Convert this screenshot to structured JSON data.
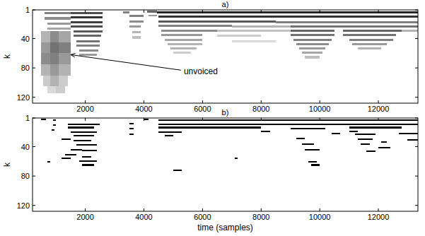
{
  "chart_data": [
    {
      "type": "heatmap",
      "title": "a)",
      "ylabel": "k",
      "color": "#000000",
      "xlim": [
        200,
        13350
      ],
      "ylim": [
        1,
        128
      ],
      "zlim": [
        0,
        1
      ],
      "xticks": [
        2000,
        4000,
        6000,
        8000,
        10000,
        12000
      ],
      "yticks": [
        1,
        40,
        80,
        120
      ],
      "annotations": [
        {
          "text": "unvoiced",
          "x": 1500,
          "y": 62
        }
      ],
      "cells": [
        {
          "x0": 1500,
          "x1": 2600,
          "y0": 4,
          "y1": 7,
          "value": 0.7
        },
        {
          "x0": 1500,
          "x1": 2600,
          "y0": 10,
          "y1": 13,
          "value": 0.8
        },
        {
          "x0": 1500,
          "x1": 2600,
          "y0": 16,
          "y1": 19,
          "value": 0.75
        },
        {
          "x0": 1500,
          "x1": 2600,
          "y0": 22,
          "y1": 25,
          "value": 0.7
        },
        {
          "x0": 1600,
          "x1": 2600,
          "y0": 29,
          "y1": 32,
          "value": 0.65
        },
        {
          "x0": 1600,
          "x1": 2550,
          "y0": 35,
          "y1": 38,
          "value": 0.6
        },
        {
          "x0": 1700,
          "x1": 2500,
          "y0": 42,
          "y1": 45,
          "value": 0.55
        },
        {
          "x0": 1700,
          "x1": 2500,
          "y0": 48,
          "y1": 51,
          "value": 0.5
        },
        {
          "x0": 1800,
          "x1": 2450,
          "y0": 55,
          "y1": 58,
          "value": 0.45
        },
        {
          "x0": 1800,
          "x1": 2400,
          "y0": 61,
          "y1": 64,
          "value": 0.4
        },
        {
          "x0": 600,
          "x1": 1500,
          "y0": 4,
          "y1": 7,
          "value": 0.5
        },
        {
          "x0": 600,
          "x1": 1500,
          "y0": 11,
          "y1": 14,
          "value": 0.45
        },
        {
          "x0": 700,
          "x1": 1500,
          "y0": 18,
          "y1": 21,
          "value": 0.4
        },
        {
          "x0": 700,
          "x1": 1500,
          "y0": 25,
          "y1": 28,
          "value": 0.35
        },
        {
          "x0": 500,
          "x1": 800,
          "y0": 30,
          "y1": 45,
          "value": 0.3
        },
        {
          "x0": 800,
          "x1": 1100,
          "y0": 30,
          "y1": 45,
          "value": 0.45
        },
        {
          "x0": 1100,
          "x1": 1500,
          "y0": 30,
          "y1": 45,
          "value": 0.35
        },
        {
          "x0": 500,
          "x1": 800,
          "y0": 45,
          "y1": 60,
          "value": 0.4
        },
        {
          "x0": 800,
          "x1": 1100,
          "y0": 45,
          "y1": 60,
          "value": 0.55
        },
        {
          "x0": 1100,
          "x1": 1500,
          "y0": 45,
          "y1": 60,
          "value": 0.5
        },
        {
          "x0": 500,
          "x1": 800,
          "y0": 60,
          "y1": 75,
          "value": 0.45
        },
        {
          "x0": 800,
          "x1": 1100,
          "y0": 60,
          "y1": 75,
          "value": 0.5
        },
        {
          "x0": 1100,
          "x1": 1500,
          "y0": 60,
          "y1": 75,
          "value": 0.4
        },
        {
          "x0": 500,
          "x1": 800,
          "y0": 75,
          "y1": 90,
          "value": 0.3
        },
        {
          "x0": 800,
          "x1": 1100,
          "y0": 75,
          "y1": 90,
          "value": 0.4
        },
        {
          "x0": 1100,
          "x1": 1500,
          "y0": 75,
          "y1": 90,
          "value": 0.3
        },
        {
          "x0": 550,
          "x1": 800,
          "y0": 90,
          "y1": 105,
          "value": 0.2
        },
        {
          "x0": 800,
          "x1": 1100,
          "y0": 90,
          "y1": 105,
          "value": 0.3
        },
        {
          "x0": 1100,
          "x1": 1400,
          "y0": 90,
          "y1": 105,
          "value": 0.2
        },
        {
          "x0": 700,
          "x1": 1000,
          "y0": 105,
          "y1": 115,
          "value": 0.15
        },
        {
          "x0": 1000,
          "x1": 1300,
          "y0": 105,
          "y1": 115,
          "value": 0.2
        },
        {
          "x0": 3300,
          "x1": 3500,
          "y0": 3,
          "y1": 6,
          "value": 0.5
        },
        {
          "x0": 3500,
          "x1": 4000,
          "y0": 8,
          "y1": 11,
          "value": 0.5
        },
        {
          "x0": 3500,
          "x1": 4000,
          "y0": 15,
          "y1": 18,
          "value": 0.45
        },
        {
          "x0": 3500,
          "x1": 3900,
          "y0": 22,
          "y1": 25,
          "value": 0.4
        },
        {
          "x0": 3600,
          "x1": 3900,
          "y0": 30,
          "y1": 33,
          "value": 0.3
        },
        {
          "x0": 3600,
          "x1": 3900,
          "y0": 37,
          "y1": 40,
          "value": 0.25
        },
        {
          "x0": 4100,
          "x1": 4450,
          "y0": 2,
          "y1": 5,
          "value": 0.6
        },
        {
          "x0": 4150,
          "x1": 4450,
          "y0": 8,
          "y1": 10,
          "value": 0.4
        },
        {
          "x0": 4450,
          "x1": 13350,
          "y0": 3,
          "y1": 6,
          "value": 0.85
        },
        {
          "x0": 4500,
          "x1": 13350,
          "y0": 9,
          "y1": 12,
          "value": 0.8
        },
        {
          "x0": 4500,
          "x1": 8500,
          "y0": 15,
          "y1": 18,
          "value": 0.65
        },
        {
          "x0": 8500,
          "x1": 13350,
          "y0": 16,
          "y1": 19,
          "value": 0.5
        },
        {
          "x0": 4500,
          "x1": 7000,
          "y0": 21,
          "y1": 24,
          "value": 0.5
        },
        {
          "x0": 7000,
          "x1": 9000,
          "y0": 22,
          "y1": 25,
          "value": 0.3
        },
        {
          "x0": 9000,
          "x1": 13350,
          "y0": 22,
          "y1": 25,
          "value": 0.55
        },
        {
          "x0": 4600,
          "x1": 6500,
          "y0": 28,
          "y1": 31,
          "value": 0.45
        },
        {
          "x0": 6500,
          "x1": 9000,
          "y0": 28,
          "y1": 31,
          "value": 0.25
        },
        {
          "x0": 9000,
          "x1": 10500,
          "y0": 28,
          "y1": 31,
          "value": 0.6
        },
        {
          "x0": 10800,
          "x1": 12800,
          "y0": 28,
          "y1": 31,
          "value": 0.6
        },
        {
          "x0": 12800,
          "x1": 13350,
          "y0": 28,
          "y1": 31,
          "value": 0.3
        },
        {
          "x0": 4600,
          "x1": 6000,
          "y0": 34,
          "y1": 37,
          "value": 0.4
        },
        {
          "x0": 6500,
          "x1": 8000,
          "y0": 35,
          "y1": 38,
          "value": 0.2
        },
        {
          "x0": 9000,
          "x1": 10500,
          "y0": 34,
          "y1": 37,
          "value": 0.55
        },
        {
          "x0": 10800,
          "x1": 12600,
          "y0": 34,
          "y1": 37,
          "value": 0.55
        },
        {
          "x0": 4700,
          "x1": 6000,
          "y0": 40,
          "y1": 43,
          "value": 0.35
        },
        {
          "x0": 7000,
          "x1": 8500,
          "y0": 42,
          "y1": 45,
          "value": 0.15
        },
        {
          "x0": 9100,
          "x1": 10400,
          "y0": 40,
          "y1": 43,
          "value": 0.5
        },
        {
          "x0": 11000,
          "x1": 12500,
          "y0": 40,
          "y1": 43,
          "value": 0.5
        },
        {
          "x0": 4800,
          "x1": 6000,
          "y0": 46,
          "y1": 49,
          "value": 0.3
        },
        {
          "x0": 9200,
          "x1": 10300,
          "y0": 46,
          "y1": 49,
          "value": 0.45
        },
        {
          "x0": 11100,
          "x1": 12300,
          "y0": 46,
          "y1": 49,
          "value": 0.4
        },
        {
          "x0": 4900,
          "x1": 5800,
          "y0": 52,
          "y1": 55,
          "value": 0.3
        },
        {
          "x0": 9300,
          "x1": 10200,
          "y0": 52,
          "y1": 55,
          "value": 0.4
        },
        {
          "x0": 11300,
          "x1": 12100,
          "y0": 52,
          "y1": 55,
          "value": 0.3
        },
        {
          "x0": 5000,
          "x1": 5600,
          "y0": 58,
          "y1": 61,
          "value": 0.2
        },
        {
          "x0": 9400,
          "x1": 10100,
          "y0": 58,
          "y1": 61,
          "value": 0.35
        },
        {
          "x0": 9500,
          "x1": 10000,
          "y0": 64,
          "y1": 67,
          "value": 0.25
        }
      ]
    },
    {
      "type": "heatmap",
      "title": "b)",
      "ylabel": "k",
      "xlabel": "time (samples)",
      "color": "#000000",
      "xlim": [
        200,
        13350
      ],
      "ylim": [
        1,
        128
      ],
      "zlim": [
        0,
        1
      ],
      "xticks": [
        2000,
        4000,
        6000,
        8000,
        10000,
        12000
      ],
      "yticks": [
        1,
        40,
        80,
        120
      ],
      "cells": [
        {
          "x0": 500,
          "x1": 650,
          "y0": 2,
          "y1": 4,
          "value": 1
        },
        {
          "x0": 900,
          "x1": 1000,
          "y0": 3,
          "y1": 5,
          "value": 1
        },
        {
          "x0": 900,
          "x1": 1000,
          "y0": 10,
          "y1": 12,
          "value": 1
        },
        {
          "x0": 850,
          "x1": 950,
          "y0": 16,
          "y1": 18,
          "value": 1
        },
        {
          "x0": 1400,
          "x1": 2500,
          "y0": 9,
          "y1": 11,
          "value": 1
        },
        {
          "x0": 1400,
          "x1": 2300,
          "y0": 13,
          "y1": 15,
          "value": 1
        },
        {
          "x0": 1500,
          "x1": 2400,
          "y0": 19,
          "y1": 21,
          "value": 1
        },
        {
          "x0": 1600,
          "x1": 2300,
          "y0": 24,
          "y1": 26,
          "value": 1
        },
        {
          "x0": 1200,
          "x1": 1500,
          "y0": 29,
          "y1": 31,
          "value": 1
        },
        {
          "x0": 1600,
          "x1": 2200,
          "y0": 31,
          "y1": 33,
          "value": 1
        },
        {
          "x0": 1700,
          "x1": 2400,
          "y0": 37,
          "y1": 39,
          "value": 1
        },
        {
          "x0": 1500,
          "x1": 1900,
          "y0": 43,
          "y1": 45,
          "value": 1
        },
        {
          "x0": 1900,
          "x1": 2400,
          "y0": 44,
          "y1": 46,
          "value": 1
        },
        {
          "x0": 1300,
          "x1": 1700,
          "y0": 50,
          "y1": 52,
          "value": 1
        },
        {
          "x0": 1900,
          "x1": 2200,
          "y0": 53,
          "y1": 55,
          "value": 1
        },
        {
          "x0": 1200,
          "x1": 1500,
          "y0": 55,
          "y1": 57,
          "value": 1
        },
        {
          "x0": 1800,
          "x1": 2400,
          "y0": 59,
          "y1": 61,
          "value": 1
        },
        {
          "x0": 1900,
          "x1": 2300,
          "y0": 64,
          "y1": 66,
          "value": 1
        },
        {
          "x0": 700,
          "x1": 800,
          "y0": 60,
          "y1": 62,
          "value": 1
        },
        {
          "x0": 3500,
          "x1": 3650,
          "y0": 8,
          "y1": 10,
          "value": 1
        },
        {
          "x0": 3500,
          "x1": 3650,
          "y0": 14,
          "y1": 16,
          "value": 1
        },
        {
          "x0": 3500,
          "x1": 3650,
          "y0": 22,
          "y1": 24,
          "value": 1
        },
        {
          "x0": 4000,
          "x1": 4150,
          "y0": 2,
          "y1": 4,
          "value": 1
        },
        {
          "x0": 4500,
          "x1": 13350,
          "y0": 3,
          "y1": 5,
          "value": 1
        },
        {
          "x0": 4500,
          "x1": 13350,
          "y0": 9,
          "y1": 11,
          "value": 1
        },
        {
          "x0": 4500,
          "x1": 8000,
          "y0": 13,
          "y1": 15,
          "value": 1
        },
        {
          "x0": 9000,
          "x1": 10200,
          "y0": 14,
          "y1": 16,
          "value": 1
        },
        {
          "x0": 4500,
          "x1": 5300,
          "y0": 19,
          "y1": 21,
          "value": 1
        },
        {
          "x0": 4700,
          "x1": 5000,
          "y0": 24,
          "y1": 26,
          "value": 1
        },
        {
          "x0": 5000,
          "x1": 5300,
          "y0": 71,
          "y1": 73,
          "value": 1
        },
        {
          "x0": 7100,
          "x1": 7200,
          "y0": 55,
          "y1": 57,
          "value": 1
        },
        {
          "x0": 8000,
          "x1": 8300,
          "y0": 18,
          "y1": 20,
          "value": 1
        },
        {
          "x0": 9200,
          "x1": 9500,
          "y0": 28,
          "y1": 30,
          "value": 1
        },
        {
          "x0": 9400,
          "x1": 9800,
          "y0": 36,
          "y1": 38,
          "value": 1
        },
        {
          "x0": 9500,
          "x1": 10000,
          "y0": 43,
          "y1": 45,
          "value": 1
        },
        {
          "x0": 9600,
          "x1": 9900,
          "y0": 60,
          "y1": 62,
          "value": 1
        },
        {
          "x0": 9700,
          "x1": 10000,
          "y0": 64,
          "y1": 66,
          "value": 1
        },
        {
          "x0": 10400,
          "x1": 10700,
          "y0": 21,
          "y1": 23,
          "value": 1
        },
        {
          "x0": 11000,
          "x1": 11300,
          "y0": 18,
          "y1": 20,
          "value": 1
        },
        {
          "x0": 11000,
          "x1": 12300,
          "y0": 13,
          "y1": 15,
          "value": 1
        },
        {
          "x0": 11200,
          "x1": 11900,
          "y0": 22,
          "y1": 24,
          "value": 1
        },
        {
          "x0": 11300,
          "x1": 11800,
          "y0": 29,
          "y1": 31,
          "value": 1
        },
        {
          "x0": 11400,
          "x1": 11700,
          "y0": 36,
          "y1": 38,
          "value": 1
        },
        {
          "x0": 11600,
          "x1": 11900,
          "y0": 45,
          "y1": 47,
          "value": 1
        },
        {
          "x0": 12000,
          "x1": 12400,
          "y0": 40,
          "y1": 42,
          "value": 1
        },
        {
          "x0": 12100,
          "x1": 12300,
          "y0": 33,
          "y1": 35,
          "value": 1
        },
        {
          "x0": 12300,
          "x1": 12800,
          "y0": 13,
          "y1": 15,
          "value": 1
        },
        {
          "x0": 12700,
          "x1": 13350,
          "y0": 21,
          "y1": 23,
          "value": 1
        },
        {
          "x0": 13000,
          "x1": 13350,
          "y0": 30,
          "y1": 32,
          "value": 1
        }
      ]
    }
  ]
}
